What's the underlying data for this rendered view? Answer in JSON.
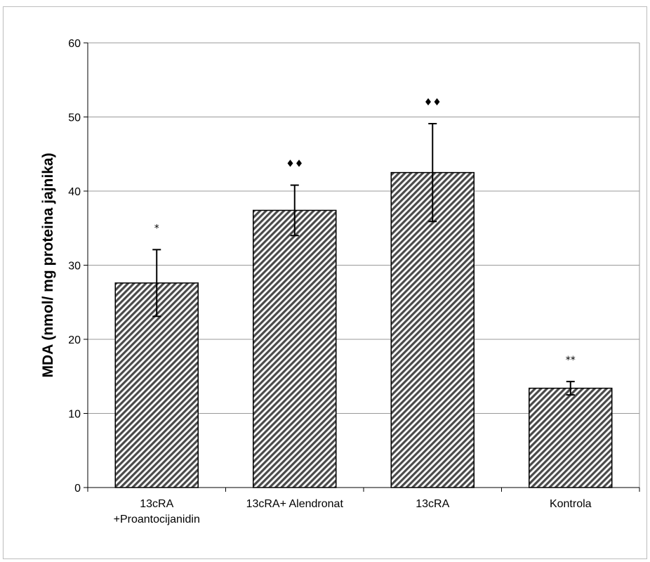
{
  "chart_data": {
    "type": "bar",
    "title": "",
    "xlabel": "",
    "ylabel": "MDA (nmol/ mg proteina jajnika)",
    "ylim": [
      0,
      60
    ],
    "yticks": [
      0,
      10,
      20,
      30,
      40,
      50,
      60
    ],
    "grid": true,
    "categories": [
      [
        "13cRA",
        "+Proantocijanidin"
      ],
      [
        "13cRA+ Alendronat"
      ],
      [
        "13cRA"
      ],
      [
        "Kontrola"
      ]
    ],
    "values": [
      27.6,
      37.4,
      42.5,
      13.4
    ],
    "errors": [
      4.5,
      3.4,
      6.6,
      0.9
    ],
    "annotations": [
      "*",
      "♦♦",
      "♦♦",
      "**"
    ],
    "bar_fill": "#555555",
    "bar_stripe_bg": "#ffffff",
    "grid_color": "#9a9a9a"
  }
}
